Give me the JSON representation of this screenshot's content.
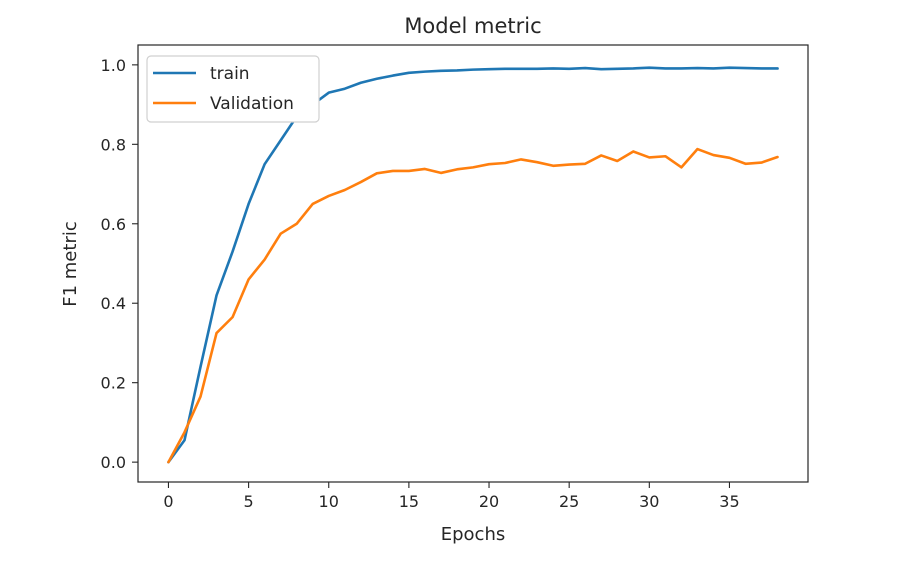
{
  "chart_data": {
    "type": "line",
    "title": "Model metric",
    "xlabel": "Epochs",
    "ylabel": "F1 metric",
    "xlim": [
      -1.9,
      39.9
    ],
    "ylim": [
      -0.05,
      1.05
    ],
    "xticks": [
      0,
      5,
      10,
      15,
      20,
      25,
      30,
      35
    ],
    "yticks": [
      0.0,
      0.2,
      0.4,
      0.6,
      0.8,
      1.0
    ],
    "xtick_labels": [
      "0",
      "5",
      "10",
      "15",
      "20",
      "25",
      "30",
      "35"
    ],
    "ytick_labels": [
      "0.0",
      "0.2",
      "0.4",
      "0.6",
      "0.8",
      "1.0"
    ],
    "grid": false,
    "legend_position": "upper-left",
    "x": [
      0,
      1,
      2,
      3,
      4,
      5,
      6,
      7,
      8,
      9,
      10,
      11,
      12,
      13,
      14,
      15,
      16,
      17,
      18,
      19,
      20,
      21,
      22,
      23,
      24,
      25,
      26,
      27,
      28,
      29,
      30,
      31,
      32,
      33,
      34,
      35,
      36,
      37,
      38
    ],
    "series": [
      {
        "name": "train",
        "color": "#1f77b4",
        "values": [
          0.0,
          0.055,
          0.24,
          0.42,
          0.53,
          0.65,
          0.75,
          0.81,
          0.87,
          0.9,
          0.93,
          0.94,
          0.955,
          0.965,
          0.973,
          0.98,
          0.983,
          0.985,
          0.986,
          0.988,
          0.989,
          0.99,
          0.99,
          0.99,
          0.991,
          0.99,
          0.992,
          0.989,
          0.99,
          0.991,
          0.993,
          0.991,
          0.991,
          0.992,
          0.991,
          0.993,
          0.992,
          0.991,
          0.991
        ]
      },
      {
        "name": "Validation",
        "color": "#ff7f0e",
        "values": [
          0.0,
          0.075,
          0.165,
          0.325,
          0.365,
          0.46,
          0.51,
          0.575,
          0.6,
          0.65,
          0.67,
          0.685,
          0.705,
          0.727,
          0.733,
          0.733,
          0.738,
          0.728,
          0.737,
          0.742,
          0.75,
          0.753,
          0.762,
          0.755,
          0.746,
          0.749,
          0.751,
          0.772,
          0.758,
          0.782,
          0.767,
          0.77,
          0.742,
          0.788,
          0.773,
          0.766,
          0.751,
          0.754,
          0.768
        ]
      }
    ]
  }
}
